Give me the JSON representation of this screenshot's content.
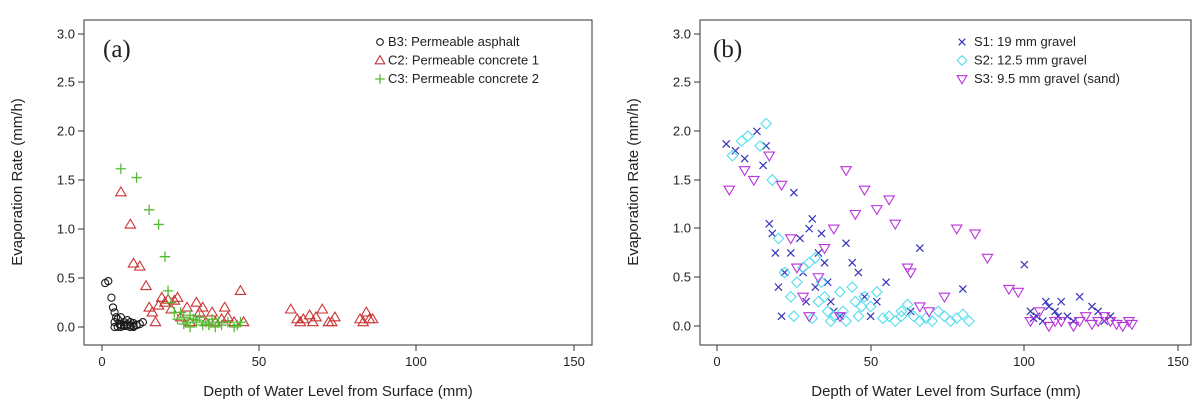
{
  "chart_data": [
    {
      "type": "scatter",
      "panel_label": "(a)",
      "xlabel": "Depth of Water Level from Surface (mm)",
      "ylabel": "Evaporation Rate (mm/h)",
      "xlim": [
        0,
        150
      ],
      "ylim": [
        0,
        3.0
      ],
      "x_ticks": [
        "0",
        "50",
        "100",
        "150"
      ],
      "y_ticks": [
        "0.0",
        "0.5",
        "1.0",
        "1.5",
        "2.0",
        "2.5",
        "3.0"
      ],
      "grid": false,
      "legend_position": "top-right",
      "series": [
        {
          "name": "B3: Permeable asphalt",
          "marker": "circle",
          "color": "#1a1a1a",
          "x": [
            1,
            2,
            3,
            3.5,
            4,
            4.5,
            4,
            5,
            5.5,
            6,
            6,
            7,
            7,
            8,
            8,
            9,
            9,
            10,
            10,
            11,
            12,
            13,
            4,
            5,
            6,
            7,
            8,
            9,
            10,
            11
          ],
          "y": [
            0.45,
            0.47,
            0.3,
            0.2,
            0.15,
            0.1,
            0.05,
            0.08,
            0.03,
            0.1,
            0.02,
            0.05,
            0.01,
            0.03,
            0.07,
            0.02,
            0.05,
            0.01,
            0.04,
            0.02,
            0.03,
            0.05,
            0.0,
            0.0,
            0.0,
            0.02,
            0.01,
            0.0,
            0.0,
            0.02
          ]
        },
        {
          "name": "C2: Permeable concrete 1",
          "marker": "triangle-up",
          "color": "#cc3333",
          "x": [
            6,
            9,
            10,
            12,
            14,
            15,
            16,
            17,
            18,
            19,
            20,
            21,
            22,
            23,
            24,
            25,
            27,
            28,
            30,
            31,
            32,
            33,
            35,
            36,
            38,
            40,
            42,
            44,
            45,
            60,
            62,
            64,
            66,
            67,
            70,
            72,
            74,
            82,
            84,
            86,
            83,
            85,
            63,
            68,
            73,
            39
          ],
          "y": [
            1.38,
            1.05,
            0.65,
            0.62,
            0.42,
            0.2,
            0.15,
            0.05,
            0.22,
            0.3,
            0.25,
            0.28,
            0.18,
            0.27,
            0.3,
            0.1,
            0.2,
            0.05,
            0.25,
            0.15,
            0.2,
            0.05,
            0.15,
            0.05,
            0.08,
            0.1,
            0.05,
            0.37,
            0.05,
            0.18,
            0.08,
            0.08,
            0.12,
            0.05,
            0.18,
            0.05,
            0.1,
            0.08,
            0.15,
            0.08,
            0.05,
            0.08,
            0.05,
            0.1,
            0.05,
            0.2
          ]
        },
        {
          "name": "C3: Permeable concrete 2",
          "marker": "plus",
          "color": "#55bb33",
          "x": [
            6,
            11,
            15,
            18,
            20,
            21,
            22,
            23,
            24,
            25,
            26,
            27,
            28,
            29,
            30,
            31,
            32,
            33,
            34,
            35,
            36,
            37,
            38,
            40,
            42,
            43,
            44,
            26,
            28,
            30,
            34
          ],
          "y": [
            1.62,
            1.53,
            1.2,
            1.05,
            0.72,
            0.37,
            0.25,
            0.15,
            0.08,
            0.15,
            0.1,
            0.05,
            0.12,
            0.08,
            0.05,
            0.1,
            0.02,
            0.05,
            0.03,
            0.08,
            0.0,
            0.05,
            0.02,
            0.05,
            0.0,
            0.02,
            0.05,
            0.03,
            0.0,
            0.07,
            0.02
          ]
        }
      ]
    },
    {
      "type": "scatter",
      "panel_label": "(b)",
      "xlabel": "Depth of Water Level from Surface (mm)",
      "ylabel": "Evaporation Rate (mm/h)",
      "xlim": [
        0,
        150
      ],
      "ylim": [
        0,
        3.0
      ],
      "x_ticks": [
        "0",
        "50",
        "100",
        "150"
      ],
      "y_ticks": [
        "0.0",
        "0.5",
        "1.0",
        "1.5",
        "2.0",
        "2.5",
        "3.0"
      ],
      "grid": false,
      "legend_position": "top-right",
      "series": [
        {
          "name": "S1: 19 mm gravel",
          "marker": "x",
          "color": "#3333bb",
          "x": [
            3,
            6,
            9,
            13,
            15,
            16,
            17,
            18,
            19,
            20,
            21,
            22,
            24,
            25,
            27,
            28,
            29,
            30,
            31,
            32,
            33,
            34,
            35,
            36,
            37,
            38,
            40,
            42,
            44,
            46,
            48,
            50,
            52,
            55,
            63,
            66,
            80,
            100,
            102,
            104,
            106,
            108,
            110,
            112,
            114,
            116,
            118,
            122,
            124,
            126,
            128,
            103,
            107,
            111
          ],
          "y": [
            1.87,
            1.8,
            1.72,
            2.0,
            1.65,
            1.85,
            1.05,
            0.95,
            0.75,
            0.4,
            0.1,
            0.55,
            0.75,
            1.37,
            0.9,
            0.55,
            0.25,
            1.0,
            1.1,
            0.4,
            0.75,
            0.95,
            0.65,
            0.45,
            0.25,
            0.15,
            0.1,
            0.85,
            0.65,
            0.55,
            0.3,
            0.1,
            0.25,
            0.45,
            0.15,
            0.8,
            0.38,
            0.63,
            0.15,
            0.1,
            0.05,
            0.2,
            0.15,
            0.25,
            0.1,
            0.05,
            0.3,
            0.2,
            0.15,
            0.05,
            0.1,
            0.08,
            0.25,
            0.1
          ]
        },
        {
          "name": "S2: 12.5 mm gravel",
          "marker": "diamond",
          "color": "#55ddee",
          "x": [
            5,
            8,
            10,
            14,
            16,
            18,
            20,
            22,
            24,
            26,
            28,
            30,
            31,
            32,
            33,
            34,
            36,
            38,
            40,
            42,
            44,
            45,
            46,
            48,
            50,
            52,
            54,
            56,
            58,
            60,
            62,
            64,
            66,
            68,
            70,
            72,
            74,
            76,
            78,
            80,
            82,
            25,
            35,
            37,
            41,
            47,
            60
          ],
          "y": [
            1.75,
            1.9,
            1.95,
            1.85,
            2.08,
            1.5,
            0.9,
            0.55,
            0.3,
            0.45,
            0.6,
            0.65,
            0.08,
            0.7,
            0.25,
            0.45,
            0.15,
            0.1,
            0.35,
            0.05,
            0.4,
            0.25,
            0.1,
            0.3,
            0.2,
            0.35,
            0.08,
            0.1,
            0.05,
            0.15,
            0.22,
            0.1,
            0.05,
            0.08,
            0.05,
            0.15,
            0.1,
            0.05,
            0.08,
            0.12,
            0.05,
            0.1,
            0.3,
            0.05,
            0.15,
            0.2,
            0.1
          ]
        },
        {
          "name": "S3: 9.5 mm gravel (sand)",
          "marker": "triangle-down",
          "color": "#bb33dd",
          "x": [
            4,
            9,
            12,
            17,
            21,
            24,
            26,
            28,
            30,
            33,
            35,
            38,
            42,
            45,
            48,
            52,
            56,
            58,
            62,
            66,
            69,
            78,
            84,
            88,
            95,
            98,
            102,
            105,
            108,
            110,
            112,
            116,
            118,
            120,
            122,
            124,
            126,
            128,
            130,
            132,
            134,
            135,
            40,
            63,
            74
          ],
          "y": [
            1.4,
            1.6,
            1.5,
            1.75,
            1.45,
            0.9,
            0.6,
            0.3,
            0.1,
            0.5,
            0.8,
            1.0,
            1.6,
            1.15,
            1.4,
            1.2,
            1.3,
            1.05,
            0.6,
            0.2,
            0.15,
            1.0,
            0.95,
            0.7,
            0.38,
            0.35,
            0.05,
            0.15,
            0.0,
            0.05,
            0.05,
            0.0,
            0.05,
            0.1,
            0.02,
            0.05,
            0.1,
            0.05,
            0.02,
            0.0,
            0.05,
            0.02,
            0.1,
            0.55,
            0.3
          ]
        }
      ]
    }
  ]
}
